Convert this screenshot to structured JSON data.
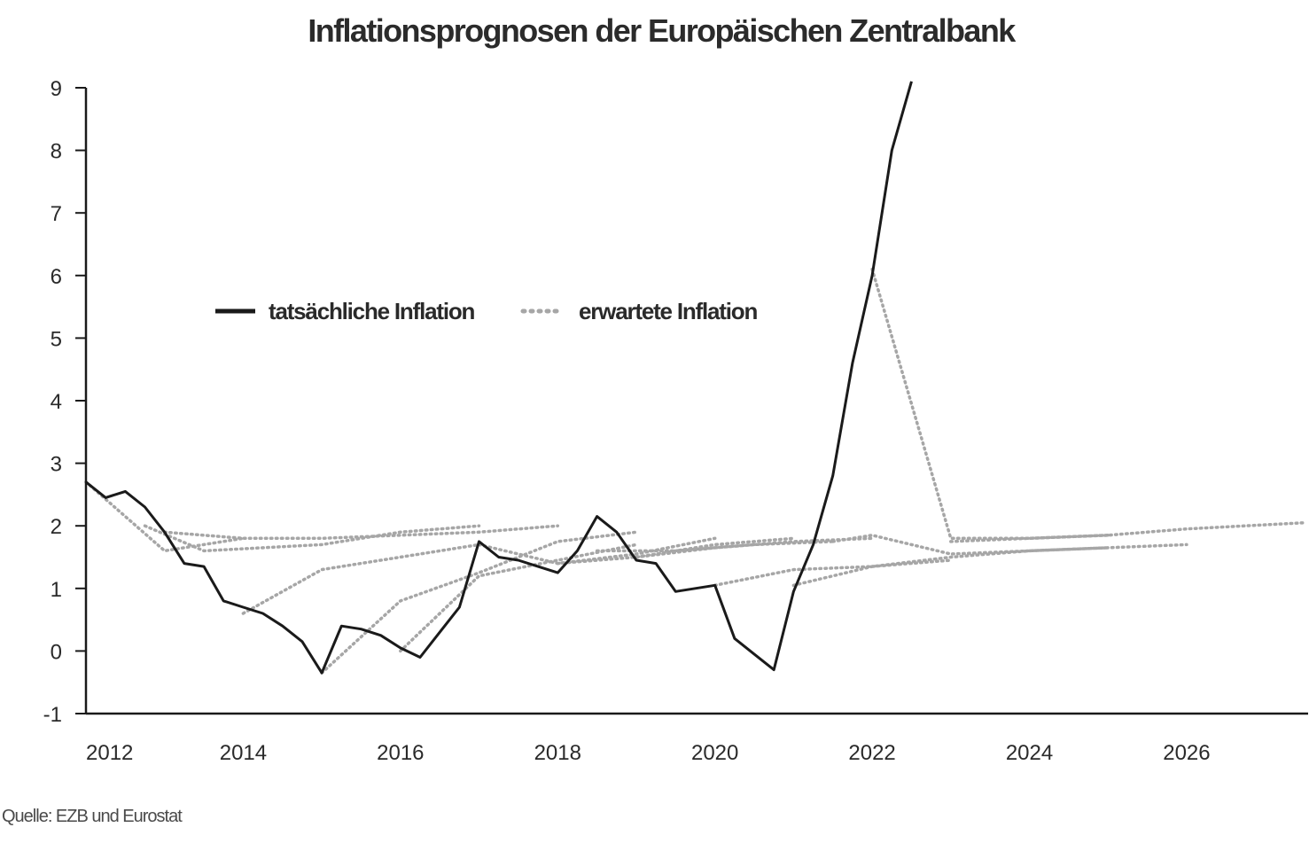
{
  "chart_data": {
    "type": "line",
    "title": "Inflationsprognosen der Europäischen Zentralbank",
    "source": "Quelle: EZB und Eurostat",
    "xlabel": "",
    "ylabel": "",
    "xlim": [
      2012,
      2027.5
    ],
    "ylim": [
      -1,
      9
    ],
    "x_ticks": [
      2012,
      2014,
      2016,
      2018,
      2020,
      2022,
      2024,
      2026
    ],
    "y_ticks": [
      -1,
      0,
      1,
      2,
      3,
      4,
      5,
      6,
      7,
      8,
      9
    ],
    "grid": false,
    "legend_position": "upper-left",
    "colors": {
      "actual": "#1a1a1a",
      "expected": "#a6a6a6",
      "axis": "#1a1a1a"
    },
    "actual": {
      "name": "tatsächliche Inflation",
      "x": [
        2012.0,
        2012.25,
        2012.5,
        2012.75,
        2013.0,
        2013.25,
        2013.5,
        2013.75,
        2014.0,
        2014.25,
        2014.5,
        2014.75,
        2015.0,
        2015.25,
        2015.5,
        2015.75,
        2016.0,
        2016.25,
        2016.5,
        2016.75,
        2017.0,
        2017.25,
        2017.5,
        2017.75,
        2018.0,
        2018.25,
        2018.5,
        2018.75,
        2019.0,
        2019.25,
        2019.5,
        2019.75,
        2020.0,
        2020.25,
        2020.5,
        2020.75,
        2021.0,
        2021.25,
        2021.5,
        2021.75,
        2022.0,
        2022.25,
        2022.5
      ],
      "values": [
        2.7,
        2.45,
        2.55,
        2.3,
        1.9,
        1.4,
        1.35,
        0.8,
        0.7,
        0.6,
        0.4,
        0.15,
        -0.35,
        0.4,
        0.35,
        0.25,
        0.05,
        -0.1,
        0.3,
        0.7,
        1.75,
        1.5,
        1.45,
        1.35,
        1.25,
        1.6,
        2.15,
        1.9,
        1.45,
        1.4,
        0.95,
        1.0,
        1.05,
        0.2,
        -0.05,
        -0.3,
        0.95,
        1.7,
        2.8,
        4.6,
        6.0,
        8.0,
        9.1
      ]
    },
    "expected": {
      "name": "erwartete Inflation",
      "series": [
        {
          "x": [
            2012.0,
            2013.0,
            2014.0
          ],
          "values": [
            2.7,
            1.6,
            1.8
          ]
        },
        {
          "x": [
            2012.75,
            2013.5,
            2015.0,
            2016.0,
            2017.0
          ],
          "values": [
            2.0,
            1.6,
            1.7,
            1.9,
            2.0
          ]
        },
        {
          "x": [
            2013.0,
            2014.0,
            2015.0,
            2016.0,
            2017.0,
            2018.0
          ],
          "values": [
            1.9,
            1.8,
            1.8,
            1.85,
            1.9,
            2.0
          ]
        },
        {
          "x": [
            2014.0,
            2015.0,
            2016.0,
            2017.0
          ],
          "values": [
            0.6,
            1.3,
            1.5,
            1.7
          ]
        },
        {
          "x": [
            2015.0,
            2016.0,
            2017.0,
            2018.0,
            2019.0
          ],
          "values": [
            -0.35,
            0.8,
            1.25,
            1.75,
            1.9
          ]
        },
        {
          "x": [
            2016.0,
            2017.0,
            2018.0,
            2019.0
          ],
          "values": [
            0.0,
            1.2,
            1.45,
            1.7
          ]
        },
        {
          "x": [
            2017.0,
            2018.0,
            2019.0,
            2020.0
          ],
          "values": [
            1.7,
            1.4,
            1.55,
            1.8
          ]
        },
        {
          "x": [
            2018.0,
            2019.0,
            2020.0,
            2021.0
          ],
          "values": [
            1.4,
            1.5,
            1.7,
            1.8
          ]
        },
        {
          "x": [
            2018.5,
            2019.5,
            2020.5,
            2021.5
          ],
          "values": [
            1.6,
            1.6,
            1.7,
            1.75
          ]
        },
        {
          "x": [
            2019.0,
            2020.0,
            2021.0,
            2022.0
          ],
          "values": [
            1.5,
            1.65,
            1.75,
            1.8
          ]
        },
        {
          "x": [
            2020.0,
            2021.0,
            2022.0,
            2023.0
          ],
          "values": [
            1.05,
            1.3,
            1.35,
            1.45
          ]
        },
        {
          "x": [
            2021.0,
            2022.0,
            2023.0,
            2024.0,
            2025.0
          ],
          "values": [
            1.05,
            1.35,
            1.5,
            1.6,
            1.65
          ]
        },
        {
          "x": [
            2021.5,
            2022.0,
            2023.0,
            2024.0,
            2026.0
          ],
          "values": [
            1.75,
            1.85,
            1.55,
            1.6,
            1.7
          ]
        },
        {
          "x": [
            2022.0,
            2023.0,
            2024.0,
            2025.0
          ],
          "values": [
            6.1,
            1.8,
            1.8,
            1.85
          ]
        },
        {
          "x": [
            2023.0,
            2024.0,
            2025.0,
            2026.0,
            2027.5
          ],
          "values": [
            1.75,
            1.8,
            1.85,
            1.95,
            2.05
          ]
        }
      ]
    }
  }
}
